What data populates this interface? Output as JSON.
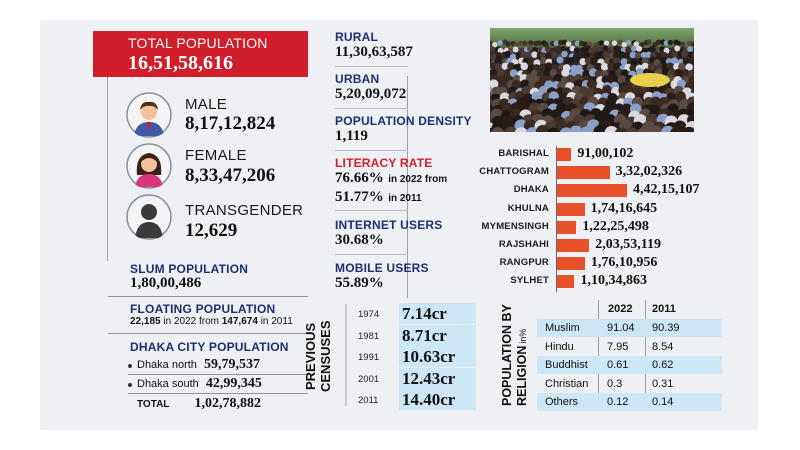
{
  "total_population": {
    "label": "TOTAL POPULATION",
    "value": "16,51,58,616"
  },
  "gender": [
    {
      "label": "MALE",
      "value": "8,17,12,824"
    },
    {
      "label": "FEMALE",
      "value": "8,33,47,206"
    },
    {
      "label": "TRANSGENDER",
      "value": "12,629"
    }
  ],
  "slum": {
    "label": "SLUM POPULATION",
    "value": "1,80,00,486"
  },
  "floating": {
    "label": "FLOATING POPULATION",
    "value_2022": "22,185",
    "text_in": "in 2022 from",
    "value_2011": "147,674",
    "text_in2": "in 2011"
  },
  "dhaka_city": {
    "label": "DHAKA CITY POPULATION",
    "rows": [
      {
        "name": "Dhaka north",
        "value": "59,79,537"
      },
      {
        "name": "Dhaka south",
        "value": "42,99,345"
      }
    ],
    "total_label": "TOTAL",
    "total_value": "1,02,78,882"
  },
  "rural": {
    "label": "RURAL",
    "value": "11,30,63,587"
  },
  "urban": {
    "label": "URBAN",
    "value": "5,20,09,072"
  },
  "density": {
    "label": "POPULATION DENSITY",
    "value": "1,119"
  },
  "literacy": {
    "label": "LITERACY RATE",
    "value_2022": "76.66%",
    "text_in": "in 2022 from",
    "value_2011": "51.77%",
    "text_in2": "in 2011"
  },
  "internet": {
    "label": "INTERNET USERS",
    "value": "30.68%"
  },
  "mobile": {
    "label": "MOBILE USERS",
    "value": "55.89%"
  },
  "divisions": [
    {
      "name": "BARISHAL",
      "value": "91,00,102",
      "population": 9100102
    },
    {
      "name": "CHATTOGRAM",
      "value": "3,32,02,326",
      "population": 33202326
    },
    {
      "name": "DHAKA",
      "value": "4,42,15,107",
      "population": 44215107
    },
    {
      "name": "KHULNA",
      "value": "1,74,16,645",
      "population": 17416645
    },
    {
      "name": "MYMENSINGH",
      "value": "1,22,25,498",
      "population": 12225498
    },
    {
      "name": "RAJSHAHI",
      "value": "2,03,53,119",
      "population": 20353119
    },
    {
      "name": "RANGPUR",
      "value": "1,76,10,956",
      "population": 17610956
    },
    {
      "name": "SYLHET",
      "value": "1,10,34,863",
      "population": 11034863
    }
  ],
  "censuses": {
    "title_line1": "PREVIOUS",
    "title_line2": "CENSUSES",
    "rows": [
      {
        "year": "1974",
        "value": "7.14cr"
      },
      {
        "year": "1981",
        "value": "8.71cr"
      },
      {
        "year": "1991",
        "value": "10.63cr"
      },
      {
        "year": "2001",
        "value": "12.43cr"
      },
      {
        "year": "2011",
        "value": "14.40cr"
      }
    ]
  },
  "religion": {
    "title_line1": "POPULATION BY",
    "title_line2": "RELIGION",
    "title_suffix": "in%",
    "col_2022": "2022",
    "col_2011": "2011",
    "rows": [
      {
        "name": "Muslim",
        "v2022": "91.04",
        "v2011": "90.39"
      },
      {
        "name": "Hindu",
        "v2022": "7.95",
        "v2011": "8.54"
      },
      {
        "name": "Buddhist",
        "v2022": "0.61",
        "v2011": "0.62"
      },
      {
        "name": "Christian",
        "v2022": "0.3",
        "v2011": "0.31"
      },
      {
        "name": "Others",
        "v2022": "0.12",
        "v2011": "0.14"
      }
    ]
  },
  "colors": {
    "red": "#d01e2a",
    "navy": "#1d2f6e",
    "bar": "#e8502a",
    "light_blue": "#cde7f7"
  },
  "icons": [
    "male-avatar-icon",
    "female-avatar-icon",
    "transgender-avatar-icon"
  ]
}
